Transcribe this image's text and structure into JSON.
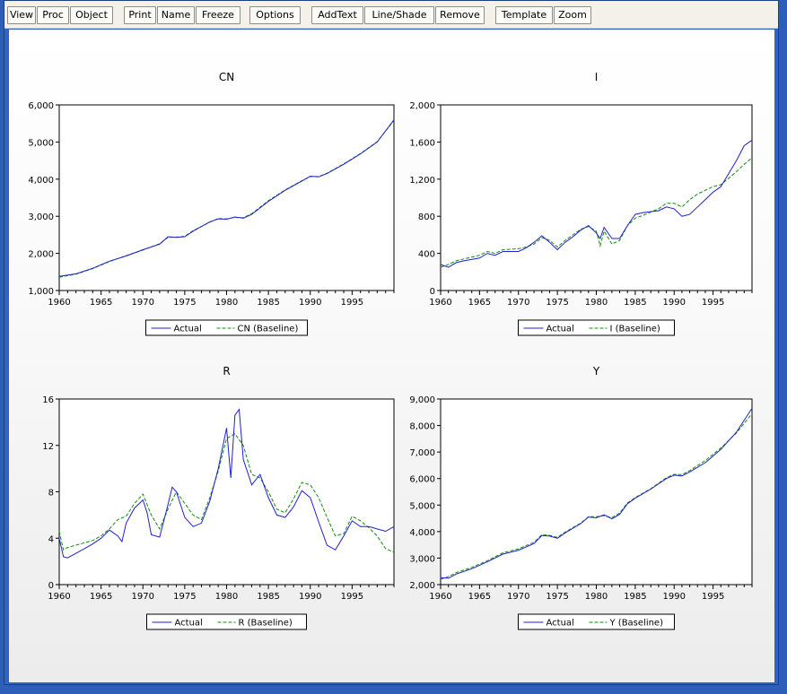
{
  "toolbar": {
    "buttons": [
      "View",
      "Proc",
      "Object",
      "Print",
      "Name",
      "Freeze",
      "Options",
      "AddText",
      "Line/Shade",
      "Remove",
      "Template",
      "Zoom"
    ]
  },
  "colors": {
    "actual": "#1f1fd1",
    "baseline": "#138a13"
  },
  "chart_data": [
    {
      "type": "line",
      "title": "CN",
      "xlim": [
        1960,
        2000
      ],
      "ylim": [
        1000,
        6000
      ],
      "xticks": [
        1960,
        1965,
        1970,
        1975,
        1980,
        1985,
        1990,
        1995
      ],
      "yticks": [
        1000,
        2000,
        3000,
        4000,
        5000,
        6000
      ],
      "ytick_labels": [
        "1,000",
        "2,000",
        "3,000",
        "4,000",
        "5,000",
        "6,000"
      ],
      "legend": [
        "Actual",
        "CN (Baseline)"
      ],
      "series": [
        {
          "name": "Actual",
          "x": [
            1960,
            1962,
            1964,
            1966,
            1968,
            1970,
            1972,
            1973,
            1974,
            1975,
            1976,
            1978,
            1979,
            1980,
            1981,
            1982,
            1983,
            1985,
            1987,
            1989,
            1990,
            1991,
            1992,
            1994,
            1996,
            1998,
            2000
          ],
          "y": [
            1380,
            1450,
            1600,
            1790,
            1930,
            2100,
            2250,
            2450,
            2430,
            2450,
            2600,
            2850,
            2930,
            2920,
            2980,
            2950,
            3050,
            3400,
            3700,
            3950,
            4080,
            4060,
            4150,
            4400,
            4680,
            5000,
            5600
          ]
        },
        {
          "name": "CN (Baseline)",
          "x": [
            1960,
            1962,
            1964,
            1966,
            1968,
            1970,
            1972,
            1973,
            1974,
            1975,
            1976,
            1978,
            1979,
            1980,
            1981,
            1982,
            1983,
            1985,
            1987,
            1989,
            1990,
            1991,
            1992,
            1994,
            1996,
            1998,
            2000
          ],
          "y": [
            1360,
            1440,
            1590,
            1780,
            1940,
            2090,
            2260,
            2430,
            2440,
            2460,
            2610,
            2840,
            2940,
            2930,
            2970,
            2960,
            3070,
            3420,
            3710,
            3960,
            4070,
            4070,
            4160,
            4410,
            4690,
            5010,
            5580
          ]
        }
      ]
    },
    {
      "type": "line",
      "title": "I",
      "xlim": [
        1960,
        2000
      ],
      "ylim": [
        0,
        2000
      ],
      "xticks": [
        1960,
        1965,
        1970,
        1975,
        1980,
        1985,
        1990,
        1995
      ],
      "yticks": [
        0,
        400,
        800,
        1200,
        1600,
        2000
      ],
      "ytick_labels": [
        "0",
        "400",
        "800",
        "1,200",
        "1,600",
        "2,000"
      ],
      "legend": [
        "Actual",
        "I (Baseline)"
      ],
      "series": [
        {
          "name": "Actual",
          "x": [
            1960,
            1961,
            1962,
            1963,
            1965,
            1966,
            1967,
            1968,
            1970,
            1971,
            1972,
            1973,
            1974,
            1975,
            1976,
            1977,
            1978,
            1979,
            1980,
            1980.5,
            1981,
            1982,
            1983,
            1984,
            1985,
            1986,
            1988,
            1989,
            1990,
            1991,
            1992,
            1993,
            1994,
            1995,
            1996,
            1997,
            1998,
            1999,
            2000
          ],
          "y": [
            280,
            250,
            300,
            320,
            350,
            400,
            380,
            420,
            420,
            460,
            520,
            590,
            520,
            440,
            520,
            580,
            650,
            700,
            620,
            560,
            680,
            560,
            560,
            700,
            820,
            840,
            860,
            900,
            880,
            800,
            820,
            900,
            980,
            1060,
            1120,
            1260,
            1400,
            1560,
            1620
          ]
        },
        {
          "name": "I (Baseline)",
          "x": [
            1960,
            1961,
            1962,
            1963,
            1965,
            1966,
            1967,
            1968,
            1970,
            1971,
            1972,
            1973,
            1974,
            1975,
            1976,
            1977,
            1978,
            1979,
            1980,
            1980.5,
            1981,
            1982,
            1983,
            1984,
            1985,
            1986,
            1988,
            1989,
            1990,
            1991,
            1992,
            1993,
            1994,
            1995,
            1996,
            1997,
            1998,
            1999,
            2000
          ],
          "y": [
            250,
            280,
            320,
            340,
            380,
            420,
            400,
            440,
            450,
            470,
            500,
            570,
            540,
            470,
            540,
            600,
            660,
            690,
            640,
            480,
            640,
            500,
            540,
            700,
            780,
            810,
            880,
            940,
            940,
            900,
            980,
            1040,
            1080,
            1120,
            1140,
            1210,
            1280,
            1360,
            1430
          ]
        }
      ]
    },
    {
      "type": "line",
      "title": "R",
      "xlim": [
        1960,
        2000
      ],
      "ylim": [
        0,
        16
      ],
      "xticks": [
        1960,
        1965,
        1970,
        1975,
        1980,
        1985,
        1990,
        1995
      ],
      "yticks": [
        0,
        4,
        8,
        12,
        16
      ],
      "ytick_labels": [
        "0",
        "4",
        "8",
        "12",
        "16"
      ],
      "legend": [
        "Actual",
        "R (Baseline)"
      ],
      "series": [
        {
          "name": "Actual",
          "x": [
            1960,
            1960.5,
            1961,
            1962,
            1963,
            1964,
            1965,
            1966,
            1967,
            1967.5,
            1968,
            1969,
            1970,
            1970.5,
            1971,
            1972,
            1973,
            1973.5,
            1974,
            1975,
            1976,
            1977,
            1978,
            1979,
            1980,
            1980.5,
            1981,
            1981.5,
            1982,
            1983,
            1984,
            1985,
            1986,
            1987,
            1988,
            1989,
            1990,
            1991,
            1992,
            1993,
            1994,
            1995,
            1996,
            1997,
            1998,
            1999,
            2000
          ],
          "y": [
            4.0,
            2.4,
            2.3,
            2.7,
            3.1,
            3.5,
            4.0,
            4.7,
            4.2,
            3.7,
            5.3,
            6.6,
            7.3,
            6.2,
            4.3,
            4.1,
            6.9,
            8.4,
            8.0,
            5.8,
            5.0,
            5.3,
            7.2,
            10.0,
            13.5,
            9.2,
            14.6,
            15.1,
            10.8,
            8.6,
            9.5,
            7.5,
            6.0,
            5.8,
            6.7,
            8.1,
            7.5,
            5.4,
            3.4,
            3.0,
            4.2,
            5.5,
            5.0,
            5.0,
            4.8,
            4.6,
            5.0
          ]
        },
        {
          "name": "R (Baseline)",
          "x": [
            1960,
            1960.5,
            1961,
            1962,
            1963,
            1964,
            1965,
            1966,
            1967,
            1968,
            1969,
            1970,
            1971,
            1972,
            1973,
            1974,
            1975,
            1976,
            1977,
            1978,
            1979,
            1980,
            1981,
            1982,
            1983,
            1984,
            1985,
            1986,
            1987,
            1988,
            1989,
            1990,
            1991,
            1992,
            1993,
            1994,
            1995,
            1996,
            1997,
            1998,
            1999,
            2000
          ],
          "y": [
            4.6,
            3.0,
            3.2,
            3.4,
            3.6,
            3.8,
            4.2,
            4.8,
            5.6,
            5.9,
            7.0,
            7.8,
            6.0,
            4.8,
            6.5,
            8.0,
            7.0,
            6.0,
            5.6,
            7.5,
            9.8,
            12.6,
            13.0,
            12.0,
            9.5,
            9.2,
            8.0,
            6.5,
            6.2,
            7.4,
            8.8,
            8.6,
            7.5,
            5.8,
            4.2,
            4.4,
            5.9,
            5.5,
            4.9,
            4.2,
            3.1,
            2.8
          ]
        }
      ]
    },
    {
      "type": "line",
      "title": "Y",
      "xlim": [
        1960,
        2000
      ],
      "ylim": [
        2000,
        9000
      ],
      "xticks": [
        1960,
        1965,
        1970,
        1975,
        1980,
        1985,
        1990,
        1995
      ],
      "yticks": [
        2000,
        3000,
        4000,
        5000,
        6000,
        7000,
        8000,
        9000
      ],
      "ytick_labels": [
        "2,000",
        "3,000",
        "4,000",
        "5,000",
        "6,000",
        "7,000",
        "8,000",
        "9,000"
      ],
      "legend": [
        "Actual",
        "Y (Baseline)"
      ],
      "series": [
        {
          "name": "Actual",
          "x": [
            1960,
            1961,
            1962,
            1964,
            1966,
            1968,
            1970,
            1972,
            1973,
            1974,
            1975,
            1976,
            1978,
            1979,
            1980,
            1981,
            1982,
            1983,
            1984,
            1985,
            1987,
            1989,
            1990,
            1991,
            1992,
            1994,
            1996,
            1998,
            2000
          ],
          "y": [
            2260,
            2240,
            2400,
            2600,
            2860,
            3150,
            3300,
            3550,
            3850,
            3830,
            3750,
            3950,
            4300,
            4550,
            4520,
            4630,
            4480,
            4650,
            5050,
            5260,
            5600,
            6000,
            6130,
            6100,
            6250,
            6600,
            7100,
            7750,
            8650
          ]
        },
        {
          "name": "Y (Baseline)",
          "x": [
            1960,
            1961,
            1962,
            1964,
            1966,
            1968,
            1970,
            1972,
            1973,
            1974,
            1975,
            1976,
            1978,
            1979,
            1980,
            1981,
            1982,
            1983,
            1984,
            1985,
            1987,
            1989,
            1990,
            1991,
            1992,
            1994,
            1996,
            1998,
            2000
          ],
          "y": [
            2200,
            2300,
            2450,
            2650,
            2900,
            3200,
            3350,
            3600,
            3880,
            3860,
            3780,
            3980,
            4320,
            4560,
            4560,
            4600,
            4530,
            4700,
            5080,
            5280,
            5620,
            6030,
            6160,
            6150,
            6300,
            6680,
            7150,
            7720,
            8450
          ]
        }
      ]
    }
  ]
}
